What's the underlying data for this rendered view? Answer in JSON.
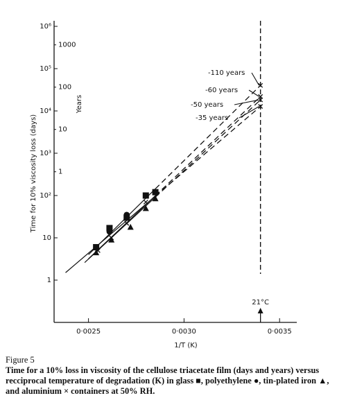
{
  "chart_data": {
    "type": "scatter",
    "x_label": "1/T (K)",
    "y_label": "Time for 10% viscosity loss (days)",
    "y2_label": "Years",
    "xlim": [
      0.00232,
      0.00359
    ],
    "xticks": [
      {
        "value": 0.0025,
        "label": "0·0025"
      },
      {
        "value": 0.003,
        "label": "0·0030"
      },
      {
        "value": 0.0035,
        "label": "0·0035"
      }
    ],
    "ylim": [
      0.1,
      1000000
    ],
    "yscale": "log",
    "yticks": [
      1,
      10,
      {
        "value": 100,
        "label": "10²"
      },
      {
        "value": 1000,
        "label": "10³"
      },
      {
        "value": 10000,
        "label": "10⁴"
      },
      {
        "value": 100000,
        "label": "10⁵"
      },
      {
        "value": 1000000,
        "label": "10⁶"
      }
    ],
    "y2lim": [
      0.000274,
      2740
    ],
    "y2ticks": [
      1,
      10,
      100,
      1000
    ],
    "series": [
      {
        "name": "glass",
        "marker": "square",
        "color": "#111111",
        "x": [
          0.00254,
          0.00261,
          0.0027,
          0.0028,
          0.00285
        ],
        "values": [
          6,
          17,
          30,
          100,
          120
        ]
      },
      {
        "name": "polyethylene",
        "marker": "circle",
        "color": "#111111",
        "x": [
          0.00254,
          0.00261,
          0.0027,
          0.0028
        ],
        "values": [
          6,
          14,
          35,
          100
        ]
      },
      {
        "name": "tin-plated iron",
        "marker": "triangle",
        "color": "#111111",
        "x": [
          0.00254,
          0.00262,
          0.00272,
          0.0028,
          0.00285
        ],
        "values": [
          4.5,
          9,
          18,
          50,
          85
        ]
      },
      {
        "name": "aluminium",
        "marker": "cross",
        "color": "#111111",
        "x": [
          0.00255,
          0.00262,
          0.0027,
          0.0028
        ],
        "values": [
          5,
          10,
          22,
          70
        ]
      }
    ],
    "trend_lines": [
      {
        "x": [
          0.0025,
          0.0034
        ],
        "values": [
          4,
          40150
        ]
      },
      {
        "x": [
          0.0025,
          0.0034
        ],
        "values": [
          3.2,
          21900
        ]
      },
      {
        "x": [
          0.00248,
          0.0034
        ],
        "values": [
          2.6,
          18250
        ]
      },
      {
        "x": [
          0.00238,
          0.0034
        ],
        "values": [
          1.5,
          12775
        ]
      }
    ],
    "dash_from": 0.00285,
    "annotations": [
      "-110 years",
      "-60 years",
      "-50 years",
      "-35 years"
    ],
    "vline": {
      "x": 0.0034,
      "label": "21°C"
    }
  },
  "caption": {
    "label": "Figure 5",
    "text": "Time for a 10% loss in viscosity of the cellulose triacetate film (days and years) versus recciprocal temperature of degradation (K) in glass ■, polyethylene ●, tin-plated iron ▲, and aluminium × containers at 50% RH."
  }
}
